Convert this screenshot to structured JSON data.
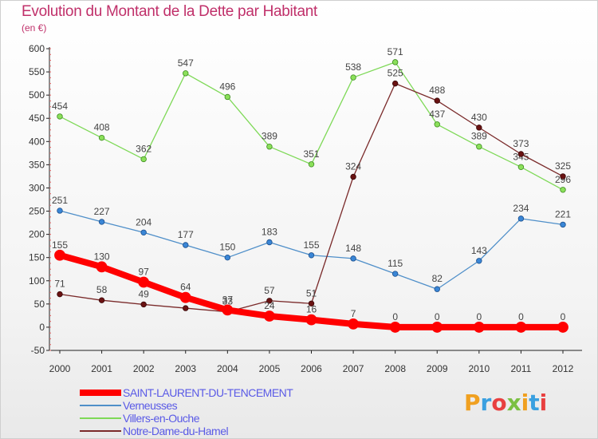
{
  "title": "Evolution du Montant de la Dette par Habitant",
  "unit": "(en €)",
  "logo_text": "Proxiti",
  "chart_data": {
    "type": "line",
    "title": "Evolution du Montant de la Dette par Habitant",
    "ylabel": "(en €)",
    "xlabel": "",
    "x": [
      "2000",
      "2001",
      "2002",
      "2003",
      "2004",
      "2005",
      "2006",
      "2007",
      "2008",
      "2009",
      "2010",
      "2011",
      "2012"
    ],
    "yticks": [
      -50,
      0,
      50,
      100,
      150,
      200,
      250,
      300,
      350,
      400,
      450,
      500,
      550,
      600
    ],
    "ylim": [
      -50,
      600
    ],
    "grid": false,
    "legend_position": "bottom-left",
    "series": [
      {
        "name": "SAINT-LAURENT-DU-TENCEMENT",
        "color": "#ff0000",
        "values": [
          155,
          130,
          97,
          64,
          37,
          24,
          16,
          7,
          0,
          0,
          0,
          0,
          0
        ]
      },
      {
        "name": "Verneusses",
        "color": "#4f8fc9",
        "values": [
          251,
          227,
          204,
          177,
          150,
          183,
          155,
          148,
          115,
          82,
          143,
          234,
          221
        ]
      },
      {
        "name": "Villers-en-Ouche",
        "color": "#7ed957",
        "values": [
          454,
          408,
          362,
          547,
          496,
          389,
          351,
          538,
          571,
          437,
          389,
          345,
          296
        ]
      },
      {
        "name": "Notre-Dame-du-Hamel",
        "color": "#7a2a2a",
        "values": [
          71,
          58,
          49,
          41,
          33,
          57,
          51,
          324,
          525,
          488,
          430,
          373,
          325
        ]
      }
    ]
  }
}
